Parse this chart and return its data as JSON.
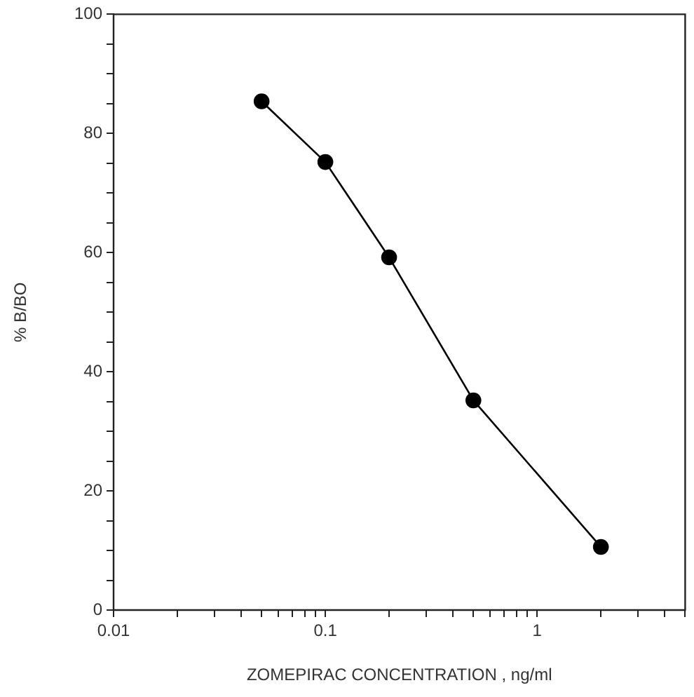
{
  "chart_data": {
    "type": "line",
    "xlabel": "ZOMEPIRAC CONCENTRATION , ng/ml",
    "ylabel": "% B/BO",
    "x": [
      0.05,
      0.1,
      0.2,
      0.5,
      2
    ],
    "series": [
      {
        "color": "#000000",
        "values": [
          85.4,
          75.2,
          59.2,
          35.2,
          10.6
        ]
      }
    ],
    "log": "x",
    "xlim": [
      0.01,
      5
    ],
    "xticks": [
      0.01,
      {
        "value": 0.02,
        "label": null
      },
      {
        "value": 0.03,
        "label": null
      },
      {
        "value": 0.04,
        "label": null
      },
      {
        "value": 0.05,
        "label": null
      },
      {
        "value": 0.06,
        "label": null
      },
      {
        "value": 0.07,
        "label": null
      },
      {
        "value": 0.08,
        "label": null
      },
      {
        "value": 0.09,
        "label": null
      },
      0.1,
      {
        "value": 0.2,
        "label": null
      },
      {
        "value": 0.3,
        "label": null
      },
      {
        "value": 0.4,
        "label": null
      },
      {
        "value": 0.5,
        "label": null
      },
      {
        "value": 0.6,
        "label": null
      },
      {
        "value": 0.7,
        "label": null
      },
      {
        "value": 0.8,
        "label": null
      },
      {
        "value": 0.9,
        "label": null
      },
      1,
      {
        "value": 2,
        "label": null
      },
      {
        "value": 3,
        "label": null
      },
      {
        "value": 4,
        "label": null
      },
      {
        "value": 5,
        "label": null
      }
    ],
    "ylim": [
      0,
      100
    ],
    "yticks": [
      0,
      {
        "value": 5,
        "label": null
      },
      {
        "value": 10,
        "label": null
      },
      {
        "value": 15,
        "label": null
      },
      20,
      {
        "value": 25,
        "label": null
      },
      {
        "value": 30,
        "label": null
      },
      {
        "value": 35,
        "label": null
      },
      40,
      {
        "value": 45,
        "label": null
      },
      {
        "value": 50,
        "label": null
      },
      {
        "value": 55,
        "label": null
      },
      60,
      {
        "value": 65,
        "label": null
      },
      {
        "value": 70,
        "label": null
      },
      {
        "value": 75,
        "label": null
      },
      80,
      {
        "value": 85,
        "label": null
      },
      {
        "value": 90,
        "label": null
      },
      {
        "value": 95,
        "label": null
      },
      100
    ],
    "marker": "circle",
    "line_style": "solid",
    "grid": false,
    "legend": false
  }
}
